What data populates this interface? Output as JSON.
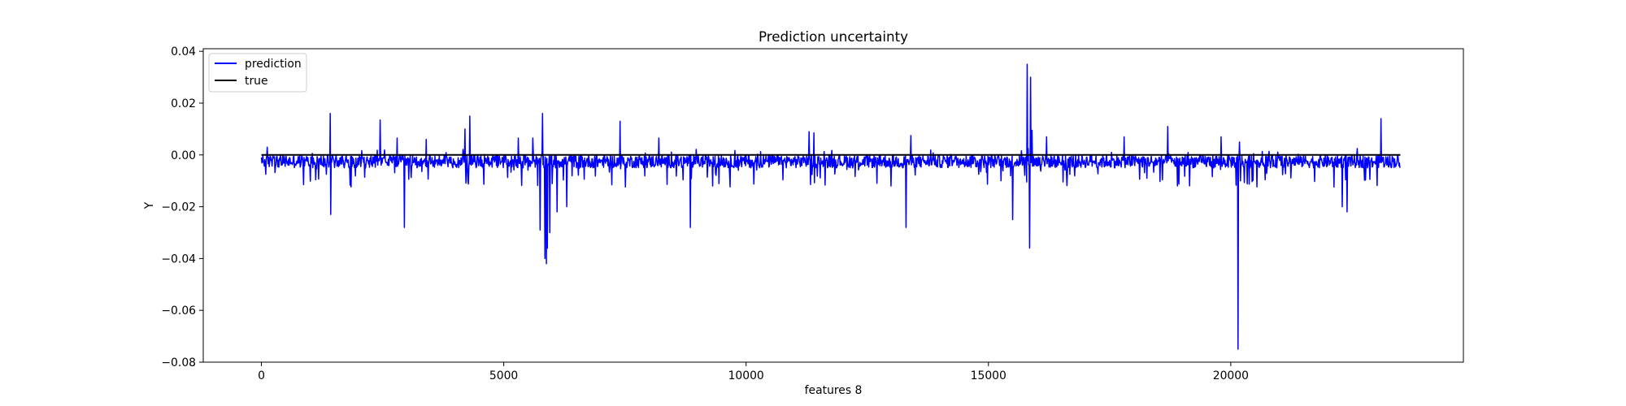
{
  "chart_data": {
    "type": "line",
    "title": "Prediction uncertainty",
    "xlabel": "features 8",
    "ylabel": "Y",
    "xlim": [
      -1200,
      24800
    ],
    "ylim": [
      -0.08,
      0.041
    ],
    "xticks": [
      0,
      5000,
      10000,
      15000,
      20000
    ],
    "xtick_labels": [
      "0",
      "5000",
      "10000",
      "15000",
      "20000"
    ],
    "yticks": [
      -0.08,
      -0.06,
      -0.04,
      -0.02,
      0.0,
      0.02,
      0.04
    ],
    "ytick_labels": [
      "−0.08",
      "−0.06",
      "−0.04",
      "−0.02",
      "0.00",
      "0.02",
      "0.04"
    ],
    "grid": false,
    "legend_position": "top-left",
    "series": [
      {
        "name": "prediction",
        "color": "#0000ff",
        "n_points": 23500,
        "baseline": -0.0025,
        "x": [
          0,
          120,
          1420,
          1430,
          2450,
          2800,
          2950,
          3400,
          4200,
          4300,
          5300,
          5600,
          5750,
          5800,
          5850,
          5880,
          5900,
          5950,
          6100,
          6300,
          7400,
          8200,
          8850,
          11300,
          11400,
          13300,
          13400,
          15500,
          15800,
          15850,
          15870,
          15900,
          16200,
          17800,
          18700,
          19800,
          20150,
          20180,
          20200,
          22300,
          22400,
          23100,
          23500
        ],
        "y": [
          -0.001,
          0.003,
          0.016,
          -0.023,
          0.0135,
          0.0065,
          -0.028,
          0.006,
          0.01,
          0.015,
          0.0065,
          0.0065,
          -0.029,
          0.016,
          -0.04,
          -0.042,
          -0.036,
          -0.03,
          -0.022,
          -0.02,
          0.013,
          0.0065,
          -0.028,
          0.009,
          0.0085,
          -0.028,
          0.0075,
          -0.025,
          0.035,
          -0.036,
          0.03,
          0.0095,
          0.007,
          0.007,
          0.011,
          0.007,
          -0.075,
          0.005,
          -0.01,
          -0.02,
          -0.022,
          0.014,
          -0.005
        ]
      },
      {
        "name": "true",
        "color": "#000000",
        "x": [
          0,
          23500
        ],
        "y": [
          0.0,
          0.0
        ]
      }
    ]
  }
}
